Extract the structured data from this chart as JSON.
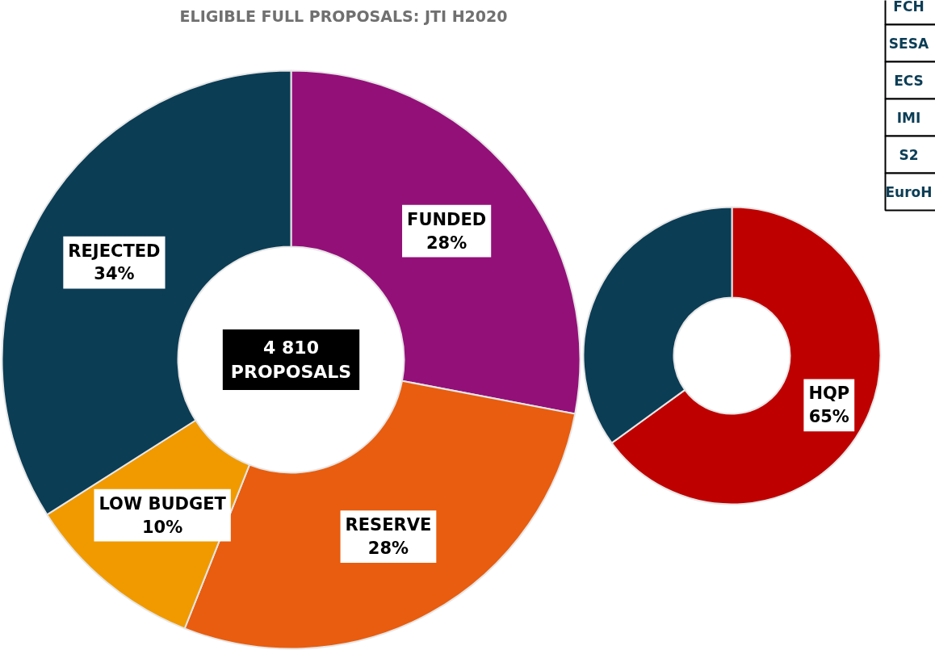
{
  "chart_data": [
    {
      "type": "donut",
      "title": "ELIGIBLE FULL PROPOSALS: JTI H2020",
      "categories": [
        "FUNDED",
        "RESERVE",
        "LOW BUDGET",
        "REJECTED"
      ],
      "values": [
        28,
        28,
        10,
        34
      ],
      "colors": [
        "#941079",
        "#e85d0f",
        "#f09a00",
        "#0b3d55"
      ],
      "value_labels": [
        "28%",
        "28%",
        "10%",
        "34%"
      ],
      "annotations": [
        "4 810\nPROPOSALS"
      ]
    },
    {
      "type": "donut",
      "categories": [
        "HQP",
        null
      ],
      "values": [
        65,
        35
      ],
      "colors": [
        "#be0000",
        "#0b3d55"
      ],
      "value_labels": [
        "65%",
        null
      ]
    },
    {
      "type": "other",
      "categories": [
        "FCH",
        "SESA",
        "ECS",
        "IMI",
        "S2",
        "EuroH"
      ]
    }
  ]
}
